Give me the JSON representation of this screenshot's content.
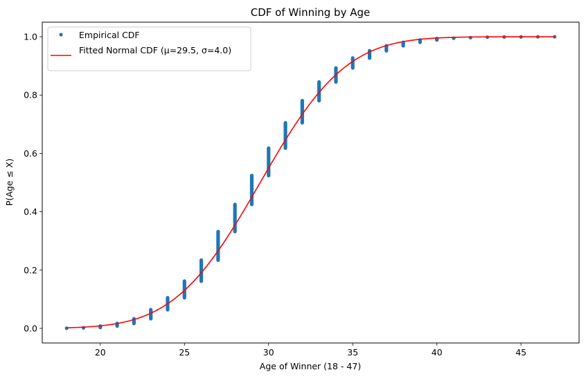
{
  "chart_data": {
    "type": "scatter",
    "title": "CDF of Winning by Age",
    "xlabel": "Age of Winner (18 - 47)",
    "ylabel": "P(Age ≤ X)",
    "xlim": [
      16.55,
      48.45
    ],
    "ylim": [
      -0.05,
      1.05
    ],
    "xticks": [
      20,
      25,
      30,
      35,
      40,
      45
    ],
    "yticks": [
      0.0,
      0.2,
      0.4,
      0.6,
      0.8,
      1.0
    ],
    "xtick_labels": [
      "20",
      "25",
      "30",
      "35",
      "40",
      "45"
    ],
    "ytick_labels": [
      "0.0",
      "0.2",
      "0.4",
      "0.6",
      "0.8",
      "1.0"
    ],
    "grid": false,
    "legend_position": "upper-left",
    "series": [
      {
        "name": "Empirical CDF",
        "kind": "points",
        "color": "#1f77b4",
        "ages": [
          18,
          19,
          20,
          21,
          22,
          23,
          24,
          25,
          26,
          27,
          28,
          29,
          30,
          31,
          32,
          33,
          34,
          35,
          36,
          37,
          38,
          39,
          40,
          41,
          42,
          43,
          44,
          45,
          46,
          47
        ],
        "cdf_min": [
          0.0,
          0.001,
          0.003,
          0.008,
          0.017,
          0.033,
          0.064,
          0.105,
          0.162,
          0.234,
          0.332,
          0.425,
          0.524,
          0.618,
          0.705,
          0.781,
          0.845,
          0.893,
          0.927,
          0.952,
          0.969,
          0.981,
          0.989,
          0.994,
          0.996,
          0.998,
          0.999,
          0.9993,
          0.9996,
          0.9998
        ],
        "cdf_max": [
          0.001,
          0.003,
          0.008,
          0.017,
          0.033,
          0.064,
          0.105,
          0.162,
          0.234,
          0.332,
          0.425,
          0.524,
          0.618,
          0.705,
          0.781,
          0.845,
          0.893,
          0.927,
          0.952,
          0.969,
          0.981,
          0.989,
          0.994,
          0.996,
          0.998,
          0.999,
          0.9993,
          0.9996,
          0.9998,
          1.0
        ]
      },
      {
        "name": "Fitted Normal CDF (μ=29.5, σ=4.0)",
        "kind": "line",
        "color": "#ff0000",
        "mu": 29.5,
        "sigma": 4.0,
        "x_range": [
          18,
          47
        ]
      }
    ]
  }
}
